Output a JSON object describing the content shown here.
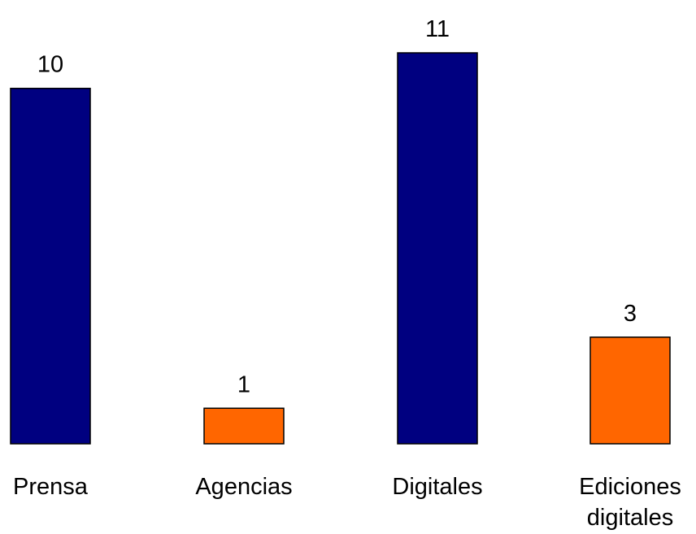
{
  "chart_data": {
    "type": "bar",
    "categories": [
      "Prensa",
      "Agencias",
      "Digitales",
      "Ediciones digitales"
    ],
    "category_lines": [
      [
        "Prensa"
      ],
      [
        "Agencias"
      ],
      [
        "Digitales"
      ],
      [
        "Ediciones",
        "digitales"
      ]
    ],
    "values": [
      10,
      1,
      11,
      3
    ],
    "value_labels": [
      "10",
      "1",
      "11",
      "3"
    ],
    "bar_colors": [
      "#000080",
      "#FF6600",
      "#000080",
      "#FF6600"
    ],
    "ylim": [
      0,
      11
    ],
    "grid": false,
    "legend": "none"
  }
}
